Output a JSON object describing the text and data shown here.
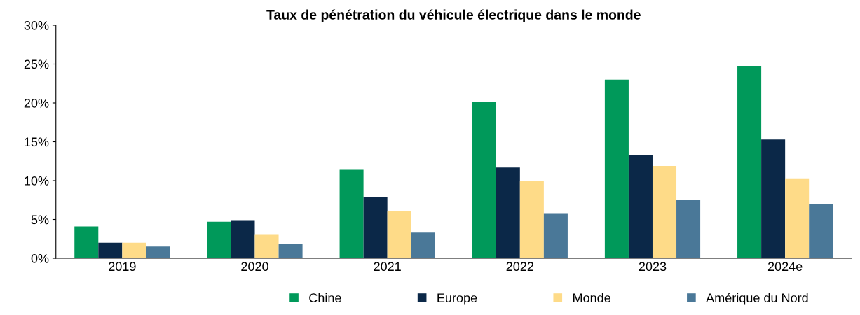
{
  "chart_data": {
    "type": "bar",
    "title": "Taux de pénétration du véhicule électrique dans le monde",
    "categories": [
      "2019",
      "2020",
      "2021",
      "2022",
      "2023",
      "2024e"
    ],
    "series": [
      {
        "name": "Chine",
        "color": "#00995a",
        "values": [
          4.1,
          4.7,
          11.4,
          20.1,
          23.0,
          24.7
        ]
      },
      {
        "name": "Europe",
        "color": "#0b2848",
        "values": [
          2.0,
          4.9,
          7.9,
          11.7,
          13.3,
          15.3
        ]
      },
      {
        "name": "Monde",
        "color": "#fedb88",
        "values": [
          2.0,
          3.1,
          6.1,
          9.9,
          11.9,
          10.3
        ]
      },
      {
        "name": "Amérique du Nord",
        "color": "#4a7898",
        "values": [
          1.5,
          1.8,
          3.3,
          5.8,
          7.5,
          7.0
        ]
      }
    ],
    "ylim": [
      0,
      30
    ],
    "yticks": [
      {
        "value": 0,
        "label": "0%"
      },
      {
        "value": 5,
        "label": "5%"
      },
      {
        "value": 10,
        "label": "10%"
      },
      {
        "value": 15,
        "label": "15%"
      },
      {
        "value": 20,
        "label": "20%"
      },
      {
        "value": 25,
        "label": "25%"
      },
      {
        "value": 30,
        "label": "30%"
      }
    ],
    "grid": false,
    "legend": "bottom"
  }
}
